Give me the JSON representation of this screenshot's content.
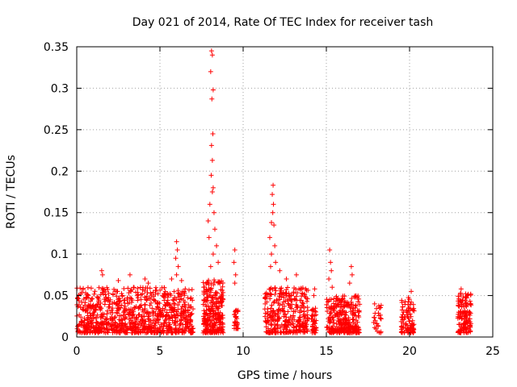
{
  "chart_data": {
    "type": "scatter",
    "title": "Day 021 of 2014, Rate Of TEC Index for receiver tash",
    "xlabel": "GPS time / hours",
    "ylabel": "ROTI / TECUs",
    "xlim": [
      0,
      25
    ],
    "ylim": [
      0,
      0.35
    ],
    "xticks": [
      0,
      5,
      10,
      15,
      20,
      25
    ],
    "xtick_labels": [
      "0",
      "5",
      "10",
      "15",
      "20",
      "25"
    ],
    "yticks": [
      0,
      0.05,
      0.1,
      0.15,
      0.2,
      0.25,
      0.3,
      0.35
    ],
    "ytick_labels": [
      "0",
      "0.05",
      "0.1",
      "0.15",
      "0.2",
      "0.25",
      "0.3",
      "0.35"
    ],
    "grid": true,
    "marker": "+",
    "color": "#ff0000",
    "clusters": [
      {
        "x_start": 0.0,
        "x_end": 7.0,
        "y_min": 0.005,
        "y_max": 0.06,
        "count": 900
      },
      {
        "x_start": 7.6,
        "x_end": 8.8,
        "y_min": 0.005,
        "y_max": 0.07,
        "count": 260
      },
      {
        "x_start": 9.4,
        "x_end": 9.7,
        "y_min": 0.01,
        "y_max": 0.035,
        "count": 30
      },
      {
        "x_start": 11.3,
        "x_end": 13.9,
        "y_min": 0.005,
        "y_max": 0.06,
        "count": 330
      },
      {
        "x_start": 14.1,
        "x_end": 14.4,
        "y_min": 0.005,
        "y_max": 0.035,
        "count": 40
      },
      {
        "x_start": 15.0,
        "x_end": 17.0,
        "y_min": 0.005,
        "y_max": 0.05,
        "count": 300
      },
      {
        "x_start": 17.8,
        "x_end": 18.3,
        "y_min": 0.005,
        "y_max": 0.04,
        "count": 25
      },
      {
        "x_start": 19.5,
        "x_end": 20.3,
        "y_min": 0.005,
        "y_max": 0.05,
        "count": 90
      },
      {
        "x_start": 22.9,
        "x_end": 23.7,
        "y_min": 0.005,
        "y_max": 0.055,
        "count": 130
      }
    ],
    "highlights": [
      {
        "x": 8.1,
        "y": 0.345
      },
      {
        "x": 8.15,
        "y": 0.34
      },
      {
        "x": 8.05,
        "y": 0.32
      },
      {
        "x": 8.2,
        "y": 0.298
      },
      {
        "x": 8.12,
        "y": 0.287
      },
      {
        "x": 8.18,
        "y": 0.245
      },
      {
        "x": 8.1,
        "y": 0.231
      },
      {
        "x": 8.15,
        "y": 0.213
      },
      {
        "x": 8.08,
        "y": 0.195
      },
      {
        "x": 8.2,
        "y": 0.18
      },
      {
        "x": 8.15,
        "y": 0.175
      },
      {
        "x": 8.0,
        "y": 0.16
      },
      {
        "x": 8.25,
        "y": 0.15
      },
      {
        "x": 7.9,
        "y": 0.14
      },
      {
        "x": 8.3,
        "y": 0.13
      },
      {
        "x": 7.95,
        "y": 0.12
      },
      {
        "x": 8.4,
        "y": 0.11
      },
      {
        "x": 8.2,
        "y": 0.1
      },
      {
        "x": 8.5,
        "y": 0.09
      },
      {
        "x": 8.05,
        "y": 0.085
      },
      {
        "x": 11.8,
        "y": 0.183
      },
      {
        "x": 11.75,
        "y": 0.172
      },
      {
        "x": 11.82,
        "y": 0.16
      },
      {
        "x": 11.78,
        "y": 0.15
      },
      {
        "x": 11.7,
        "y": 0.138
      },
      {
        "x": 11.85,
        "y": 0.135
      },
      {
        "x": 11.6,
        "y": 0.12
      },
      {
        "x": 11.9,
        "y": 0.11
      },
      {
        "x": 11.7,
        "y": 0.1
      },
      {
        "x": 11.95,
        "y": 0.09
      },
      {
        "x": 11.65,
        "y": 0.085
      },
      {
        "x": 12.2,
        "y": 0.08
      },
      {
        "x": 12.6,
        "y": 0.07
      },
      {
        "x": 13.2,
        "y": 0.075
      },
      {
        "x": 6.0,
        "y": 0.115
      },
      {
        "x": 6.05,
        "y": 0.105
      },
      {
        "x": 5.95,
        "y": 0.095
      },
      {
        "x": 6.1,
        "y": 0.085
      },
      {
        "x": 6.0,
        "y": 0.075
      },
      {
        "x": 5.7,
        "y": 0.07
      },
      {
        "x": 6.3,
        "y": 0.068
      },
      {
        "x": 9.5,
        "y": 0.105
      },
      {
        "x": 9.45,
        "y": 0.09
      },
      {
        "x": 9.55,
        "y": 0.075
      },
      {
        "x": 9.5,
        "y": 0.065
      },
      {
        "x": 15.2,
        "y": 0.105
      },
      {
        "x": 15.25,
        "y": 0.09
      },
      {
        "x": 15.3,
        "y": 0.08
      },
      {
        "x": 15.15,
        "y": 0.07
      },
      {
        "x": 15.35,
        "y": 0.06
      },
      {
        "x": 16.5,
        "y": 0.085
      },
      {
        "x": 16.55,
        "y": 0.075
      },
      {
        "x": 16.4,
        "y": 0.065
      },
      {
        "x": 1.5,
        "y": 0.08
      },
      {
        "x": 1.55,
        "y": 0.075
      },
      {
        "x": 2.5,
        "y": 0.068
      },
      {
        "x": 3.2,
        "y": 0.075
      },
      {
        "x": 4.1,
        "y": 0.07
      },
      {
        "x": 4.3,
        "y": 0.065
      },
      {
        "x": 14.3,
        "y": 0.058
      },
      {
        "x": 14.25,
        "y": 0.05
      },
      {
        "x": 20.1,
        "y": 0.055
      },
      {
        "x": 23.1,
        "y": 0.058
      },
      {
        "x": 17.9,
        "y": 0.04
      },
      {
        "x": 18.2,
        "y": 0.035
      }
    ]
  }
}
